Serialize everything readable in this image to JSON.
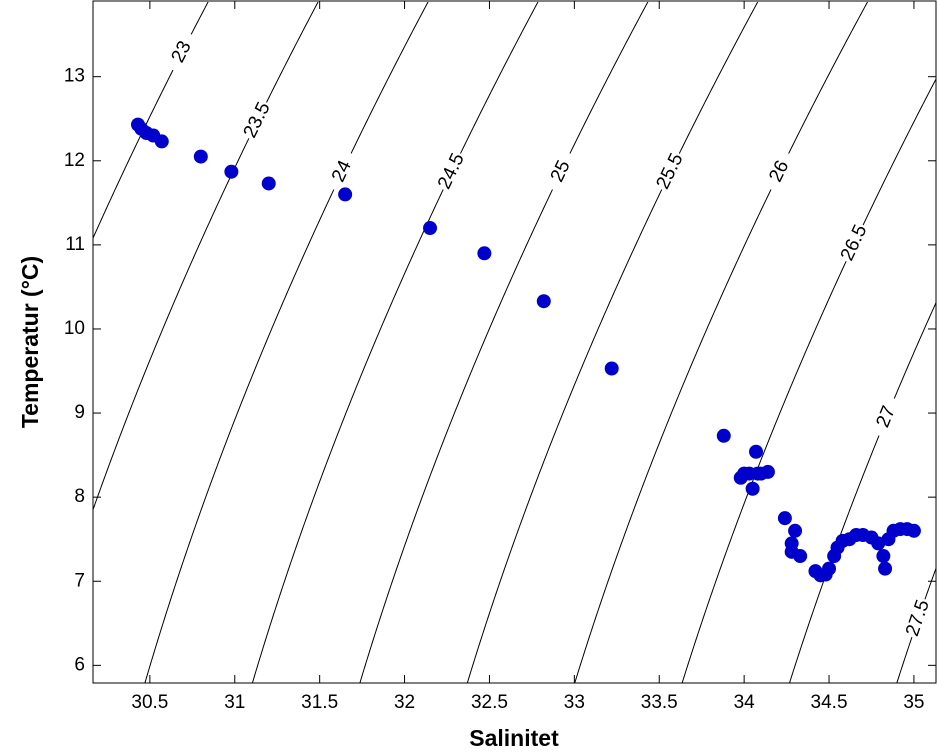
{
  "chart_data": {
    "type": "scatter",
    "xlabel": "Salinitet",
    "ylabel": "Temperatur (°C)",
    "x": [
      30.43,
      30.45,
      30.48,
      30.52,
      30.57,
      30.8,
      30.98,
      31.2,
      31.65,
      32.15,
      32.47,
      32.82,
      33.22,
      33.88,
      33.98,
      34.0,
      34.03,
      34.05,
      34.07,
      34.08,
      34.1,
      34.14,
      34.24,
      34.28,
      34.3,
      34.28,
      34.33,
      34.42,
      34.45,
      34.48,
      34.5,
      34.53,
      34.55,
      34.58,
      34.62,
      34.66,
      34.7,
      34.75,
      34.79,
      34.82,
      34.83,
      34.85,
      34.88,
      34.92,
      34.96,
      35.0
    ],
    "values": [
      12.43,
      12.38,
      12.33,
      12.3,
      12.23,
      12.05,
      11.87,
      11.73,
      11.6,
      11.2,
      10.9,
      10.33,
      9.53,
      8.73,
      8.23,
      8.28,
      8.28,
      8.1,
      8.54,
      8.28,
      8.28,
      8.3,
      7.75,
      7.45,
      7.6,
      7.35,
      7.3,
      7.12,
      7.07,
      7.08,
      7.15,
      7.3,
      7.4,
      7.48,
      7.5,
      7.55,
      7.55,
      7.52,
      7.45,
      7.3,
      7.15,
      7.5,
      7.6,
      7.62,
      7.62,
      7.6
    ],
    "color": "#0000cc",
    "xlim": [
      30.165,
      35.13
    ],
    "ylim": [
      5.79,
      13.9
    ],
    "xticks": [
      30.5,
      31,
      31.5,
      32,
      32.5,
      33,
      33.5,
      34,
      34.5,
      35
    ],
    "yticks": [
      6,
      7,
      8,
      9,
      10,
      11,
      12,
      13
    ],
    "contours": {
      "levels": [
        23,
        23.5,
        24,
        24.5,
        25,
        25.5,
        26,
        26.5,
        27,
        27.5
      ],
      "color": "#000000"
    }
  }
}
